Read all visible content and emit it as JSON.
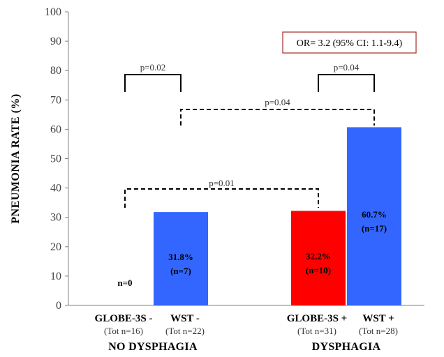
{
  "chart_data": {
    "type": "bar",
    "ylabel": "PNEUMONIA RATE (%)",
    "ylim": [
      0,
      100
    ],
    "yticks": [
      "0",
      "10",
      "20",
      "30",
      "40",
      "50",
      "60",
      "70",
      "80",
      "90",
      "100"
    ],
    "grid": false,
    "categories": [
      {
        "name": "GLOBE-3S -",
        "sub": "(Tot n=16)",
        "value": 0,
        "color": "#ffffff",
        "label": [
          "n=0"
        ]
      },
      {
        "name": "WST -",
        "sub": "(Tot n=22)",
        "value": 31.8,
        "color": "#3366ff",
        "label": [
          "31.8%",
          "(n=7)"
        ]
      },
      {
        "name": "GLOBE-3S +",
        "sub": "(Tot n=31)",
        "value": 32.2,
        "color": "#ff0000",
        "label": [
          "32.2%",
          "(n=10)"
        ]
      },
      {
        "name": "WST +",
        "sub": "(Tot n=28)",
        "value": 60.7,
        "color": "#3366ff",
        "label": [
          "60.7%",
          "(n=17)"
        ]
      }
    ],
    "groups": [
      "NO DYSPHAGIA",
      "DYSPHAGIA"
    ],
    "comparisons": [
      {
        "from": 0,
        "to": 1,
        "p": "p=0.02",
        "style": "solid"
      },
      {
        "from": 2,
        "to": 3,
        "p": "p=0.04",
        "style": "solid"
      },
      {
        "from": 1,
        "to": 3,
        "p": "p=0.04",
        "style": "dashed"
      },
      {
        "from": 0,
        "to": 2,
        "p": "p=0.01",
        "style": "dashed"
      }
    ],
    "annotation": "OR= 3.2 (95% CI: 1.1-9.4)"
  }
}
